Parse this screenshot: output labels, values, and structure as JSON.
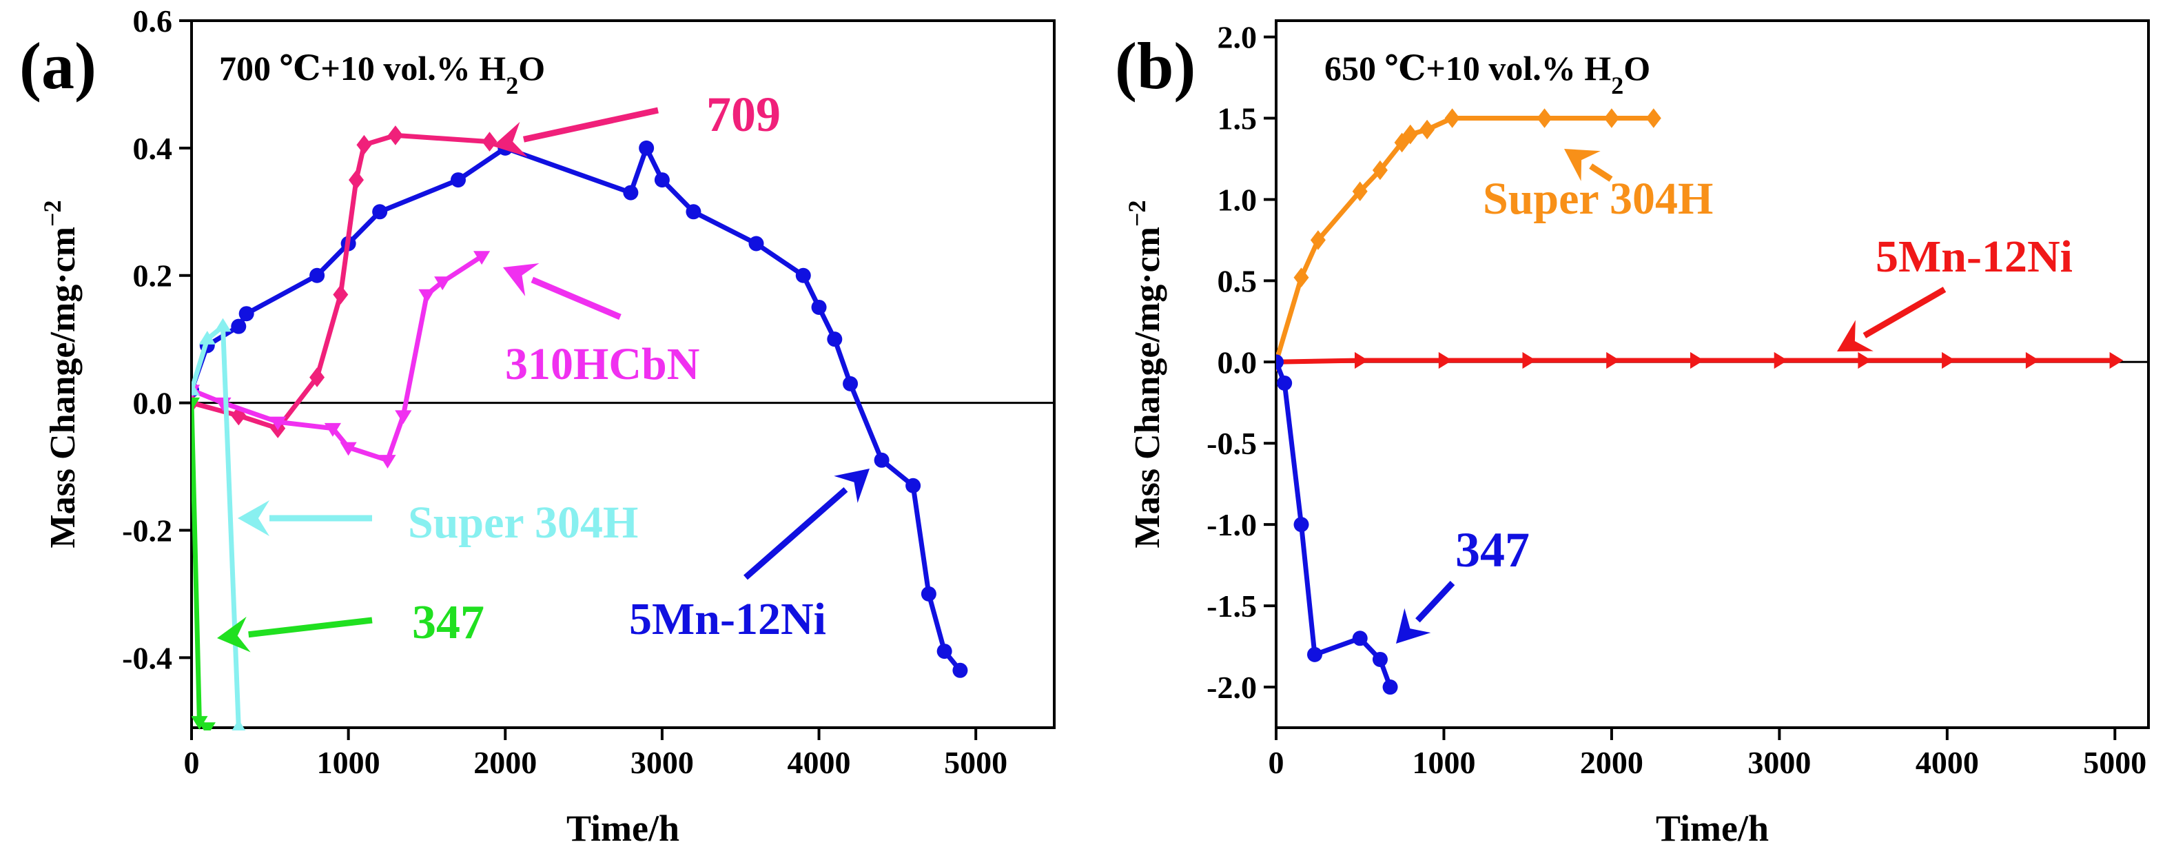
{
  "chart_data": [
    {
      "type": "line",
      "panel_label": "(a)",
      "condition_text": "700 ℃+10 vol.% H",
      "condition_sub": "2",
      "condition_tail": "O",
      "xlabel": "Time/h",
      "ylabel": "Mass Change/mg·cm",
      "ylabel_sup": "−2",
      "xlim": [
        0,
        5500
      ],
      "ylim": [
        -0.51,
        0.6
      ],
      "xticks": [
        0,
        1000,
        2000,
        3000,
        4000,
        5000
      ],
      "xtick_labels": [
        "0",
        "1000",
        "2000",
        "3000",
        "4000",
        "5000"
      ],
      "yticks": [
        -0.4,
        -0.2,
        0.0,
        0.2,
        0.4,
        0.6
      ],
      "ytick_labels": [
        "-0.4",
        "-0.2",
        "0.0",
        "0.2",
        "0.4",
        "0.6"
      ],
      "zero_line": true,
      "series": [
        {
          "name": "5Mn-12Ni",
          "label": "5Mn-12Ni",
          "color": "#1010e0",
          "marker": "circle",
          "x": [
            0,
            100,
            300,
            350,
            800,
            1000,
            1200,
            1700,
            2000,
            2800,
            2900,
            3000,
            3200,
            3600,
            3900,
            4000,
            4100,
            4200,
            4400,
            4600,
            4700,
            4800,
            4900
          ],
          "y": [
            0.02,
            0.09,
            0.12,
            0.14,
            0.2,
            0.25,
            0.3,
            0.35,
            0.4,
            0.33,
            0.4,
            0.35,
            0.3,
            0.25,
            0.2,
            0.15,
            0.1,
            0.03,
            -0.09,
            -0.13,
            -0.3,
            -0.39,
            -0.42
          ]
        },
        {
          "name": "709",
          "label": "709",
          "color": "#f0207a",
          "marker": "diamond",
          "x": [
            0,
            300,
            550,
            800,
            950,
            1050,
            1100,
            1300,
            1900
          ],
          "y": [
            0.0,
            -0.02,
            -0.04,
            0.04,
            0.17,
            0.35,
            0.405,
            0.42,
            0.41
          ]
        },
        {
          "name": "310HCbN",
          "label": "310HCbN",
          "color": "#f030f0",
          "marker": "triangle-down",
          "x": [
            0,
            200,
            550,
            900,
            1000,
            1250,
            1350,
            1500,
            1600,
            1850
          ],
          "y": [
            0.02,
            0.0,
            -0.03,
            -0.04,
            -0.07,
            -0.09,
            -0.02,
            0.17,
            0.19,
            0.23
          ]
        },
        {
          "name": "Super 304H",
          "label": "Super 304H",
          "color": "#88f0f0",
          "marker": "triangle-up",
          "x": [
            0,
            100,
            200,
            300
          ],
          "y": [
            0.02,
            0.1,
            0.12,
            -0.51
          ]
        },
        {
          "name": "347",
          "label": "347",
          "color": "#20e020",
          "marker": "triangle-down",
          "x": [
            0,
            50,
            100
          ],
          "y": [
            0.0,
            -0.5,
            -0.51
          ]
        }
      ],
      "annotations": [
        {
          "text": "709",
          "color": "#f0207a"
        },
        {
          "text": "310HCbN",
          "color": "#f030f0"
        },
        {
          "text": "Super 304H",
          "color": "#88f0f0"
        },
        {
          "text": "347",
          "color": "#20e020"
        },
        {
          "text": "5Mn-12Ni",
          "color": "#1010e0"
        }
      ]
    },
    {
      "type": "line",
      "panel_label": "(b)",
      "condition_text": "650 ℃+10 vol.% H",
      "condition_sub": "2",
      "condition_tail": "O",
      "xlabel": "Time/h",
      "ylabel": "Mass Change/mg·cm",
      "ylabel_sup": "−2",
      "xlim": [
        0,
        5200
      ],
      "ylim": [
        -2.25,
        2.1
      ],
      "xticks": [
        0,
        1000,
        2000,
        3000,
        4000,
        5000
      ],
      "xtick_labels": [
        "0",
        "1000",
        "2000",
        "3000",
        "4000",
        "5000"
      ],
      "yticks": [
        -2.0,
        -1.5,
        -1.0,
        -0.5,
        0.0,
        0.5,
        1.0,
        1.5,
        2.0
      ],
      "ytick_labels": [
        "-2.0",
        "-1.5",
        "-1.0",
        "-0.5",
        "0.0",
        "0.5",
        "1.0",
        "1.5",
        "2.0"
      ],
      "zero_line": true,
      "series": [
        {
          "name": "Super 304H",
          "label": "Super 304H",
          "color": "#f89018",
          "marker": "diamond",
          "x": [
            0,
            150,
            250,
            500,
            620,
            750,
            800,
            900,
            1050,
            1600,
            2000,
            2250
          ],
          "y": [
            0.0,
            0.52,
            0.75,
            1.05,
            1.18,
            1.35,
            1.4,
            1.43,
            1.5,
            1.5,
            1.5,
            1.5
          ]
        },
        {
          "name": "5Mn-12Ni",
          "label": "5Mn-12Ni",
          "color": "#f01818",
          "marker": "triangle-right",
          "x": [
            0,
            500,
            1000,
            1500,
            2000,
            2500,
            3000,
            3500,
            4000,
            4500,
            5000
          ],
          "y": [
            0.0,
            0.01,
            0.01,
            0.01,
            0.01,
            0.01,
            0.01,
            0.01,
            0.01,
            0.01,
            0.01
          ]
        },
        {
          "name": "347",
          "label": "347",
          "color": "#1010e0",
          "marker": "circle",
          "x": [
            0,
            50,
            150,
            230,
            500,
            620,
            680
          ],
          "y": [
            0.0,
            -0.13,
            -1.0,
            -1.8,
            -1.7,
            -1.83,
            -2.0
          ]
        }
      ],
      "annotations": [
        {
          "text": "Super 304H",
          "color": "#f89018"
        },
        {
          "text": "5Mn-12Ni",
          "color": "#f01818"
        },
        {
          "text": "347",
          "color": "#1010e0"
        }
      ]
    }
  ]
}
